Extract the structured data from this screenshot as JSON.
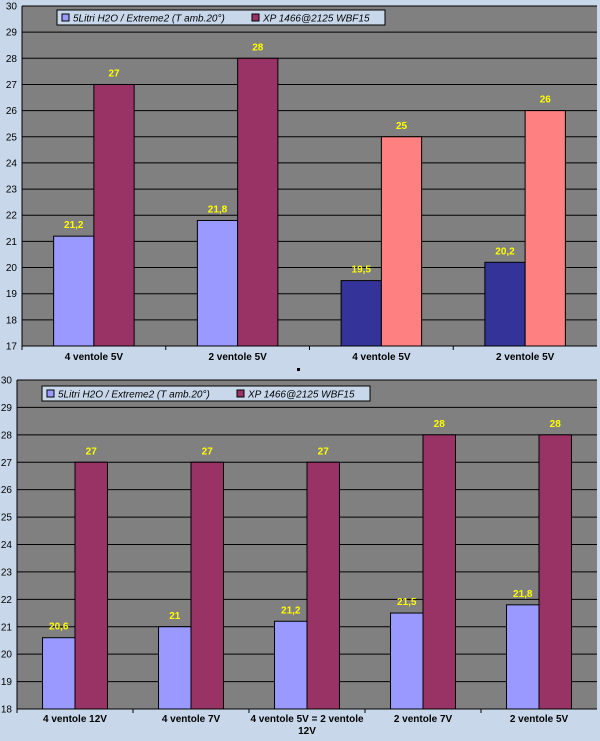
{
  "chart_data": [
    {
      "type": "bar",
      "legend_position": "top-left",
      "grid": true,
      "ylim": [
        17,
        30
      ],
      "yticks": [
        17,
        18,
        19,
        20,
        21,
        22,
        23,
        24,
        25,
        26,
        27,
        28,
        29,
        30
      ],
      "categories": [
        "4 ventole 5V",
        "2 ventole 5V",
        "4 ventole 5V",
        "2 ventole 5V"
      ],
      "series": [
        {
          "name": "5Litri H2O / Extreme2 (T amb.20°)",
          "values": [
            21.2,
            21.8,
            19.5,
            20.2
          ],
          "labels": [
            "21,2",
            "21,8",
            "19,5",
            "20,2"
          ],
          "colors": [
            "#9999ff",
            "#9999ff",
            "#333399",
            "#333399"
          ]
        },
        {
          "name": "XP 1466@2125 WBF15",
          "values": [
            27,
            28,
            25,
            26
          ],
          "labels": [
            "27",
            "28",
            "25",
            "26"
          ],
          "colors": [
            "#993366",
            "#993366",
            "#ff8080",
            "#ff8080"
          ]
        }
      ]
    },
    {
      "type": "bar",
      "legend_position": "top-left",
      "grid": true,
      "ylim": [
        18,
        30
      ],
      "yticks": [
        18,
        19,
        20,
        21,
        22,
        23,
        24,
        25,
        26,
        27,
        28,
        29,
        30
      ],
      "categories": [
        "4 ventole 12V",
        "4 ventole 7V",
        "4 ventole 5V = 2 ventole 12V",
        "2 ventole 7V",
        "2 ventole 5V"
      ],
      "series": [
        {
          "name": "5Litri H2O / Extreme2 (T amb.20°)",
          "values": [
            20.6,
            21,
            21.2,
            21.5,
            21.8
          ],
          "labels": [
            "20,6",
            "21",
            "21,2",
            "21,5",
            "21,8"
          ],
          "colors": [
            "#9999ff",
            "#9999ff",
            "#9999ff",
            "#9999ff",
            "#9999ff"
          ]
        },
        {
          "name": "XP 1466@2125 WBF15",
          "values": [
            27,
            27,
            27,
            28,
            28
          ],
          "labels": [
            "27",
            "27",
            "27",
            "28",
            "28"
          ],
          "colors": [
            "#993366",
            "#993366",
            "#993366",
            "#993366",
            "#993366"
          ]
        }
      ]
    }
  ],
  "colors": {
    "plot_bg": "#808080",
    "page_bg": "#c8d8ea",
    "data_label": "#ffff00",
    "grid": "#000000"
  }
}
